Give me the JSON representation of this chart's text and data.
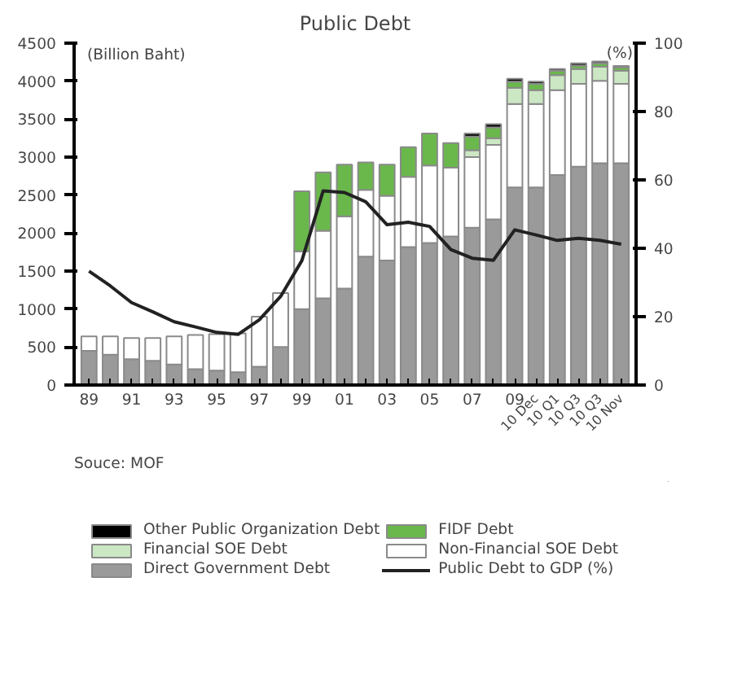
{
  "chart_data": {
    "type": "bar",
    "title": "Public Debt",
    "ylabel": "(Billion Baht)",
    "y2label": "(%)",
    "categories": [
      "89",
      null,
      "91",
      null,
      "93",
      null,
      "95",
      null,
      "97",
      null,
      "99",
      null,
      "01",
      null,
      "03",
      null,
      "05",
      null,
      "07",
      null,
      "09",
      "10 Dec",
      "10 Q1",
      "10 Q3",
      "10 Q3",
      "10 Nov"
    ],
    "stacked": true,
    "series": [
      {
        "name": "Direct Government Debt",
        "color": "#9a9a9a",
        "values": [
          450,
          400,
          340,
          320,
          270,
          210,
          190,
          170,
          240,
          500,
          1000,
          1140,
          1270,
          1690,
          1640,
          1815,
          1870,
          1955,
          2070,
          2180,
          2600,
          2600,
          2765,
          2875,
          2920,
          2920
        ]
      },
      {
        "name": "Non-Financial SOE Debt",
        "color": "#ffffff",
        "values": [
          190,
          240,
          280,
          300,
          370,
          450,
          480,
          510,
          660,
          710,
          760,
          890,
          950,
          880,
          850,
          925,
          1020,
          905,
          930,
          980,
          1100,
          1100,
          1115,
          1090,
          1085,
          1045
        ]
      },
      {
        "name": "Financial SOE Debt",
        "color": "#cbe7c3",
        "values": [
          null,
          null,
          null,
          null,
          null,
          null,
          null,
          null,
          null,
          null,
          null,
          null,
          null,
          null,
          null,
          null,
          null,
          null,
          90,
          90,
          210,
          180,
          200,
          195,
          185,
          170
        ]
      },
      {
        "name": "FIDF Debt",
        "color": "#6ab84c",
        "values": [
          null,
          null,
          null,
          null,
          null,
          null,
          null,
          null,
          null,
          null,
          790,
          770,
          680,
          360,
          410,
          390,
          420,
          325,
          180,
          140,
          85,
          85,
          55,
          45,
          45,
          45
        ]
      },
      {
        "name": "Other Public Organization Debt",
        "color": "#000000",
        "values": [
          null,
          null,
          null,
          null,
          null,
          null,
          null,
          null,
          null,
          null,
          null,
          null,
          null,
          null,
          null,
          null,
          null,
          null,
          40,
          45,
          35,
          30,
          25,
          30,
          25,
          20
        ]
      },
      {
        "name": "Public Debt to GDP (%)",
        "type": "line",
        "axis": "y2",
        "color": "#222222",
        "values": [
          33.3,
          29,
          24.1,
          21.4,
          18.5,
          17,
          15.4,
          14.8,
          19.1,
          25.9,
          36.4,
          56.8,
          56.3,
          53.6,
          46.9,
          47.6,
          46.4,
          39.6,
          37.1,
          36.5,
          45.4,
          43.9,
          42.3,
          42.9,
          42.3,
          41.2
        ]
      }
    ],
    "ylim": [
      0,
      4500
    ],
    "yticks": [
      0,
      500,
      1000,
      1500,
      2000,
      2500,
      3000,
      3500,
      4000,
      4500
    ],
    "y2lim": [
      0,
      100
    ],
    "y2ticks": [
      0,
      20,
      40,
      60,
      80,
      100
    ],
    "grid": false,
    "legend": "bottom",
    "annotations": [
      "Souce: MOF"
    ]
  }
}
